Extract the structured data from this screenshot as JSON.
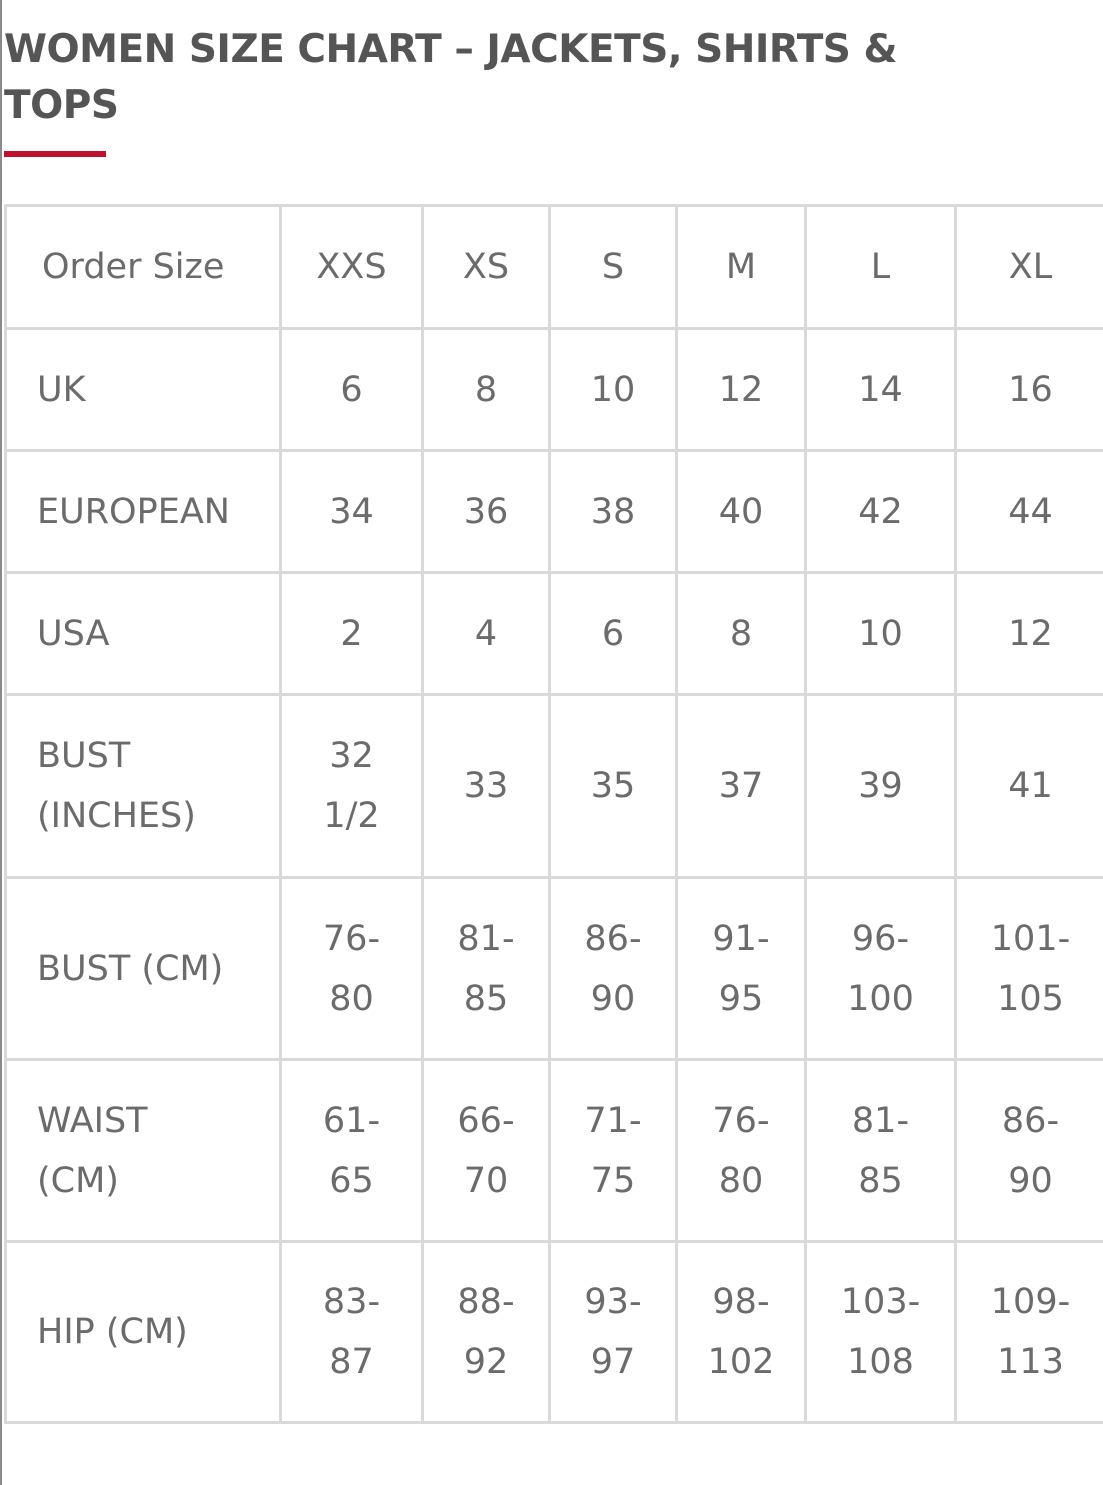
{
  "title": "WOMEN SIZE CHART – JACKETS, SHIRTS & TOPS",
  "accent_color": "#c0122e",
  "table": {
    "header": [
      "Order Size",
      "XXS",
      "XS",
      "S",
      "M",
      "L",
      "XL"
    ],
    "rows": [
      {
        "label": "UK",
        "values": [
          "6",
          "8",
          "10",
          "12",
          "14",
          "16"
        ]
      },
      {
        "label": "EUROPEAN",
        "values": [
          "34",
          "36",
          "38",
          "40",
          "42",
          "44"
        ]
      },
      {
        "label": "USA",
        "values": [
          "2",
          "4",
          "6",
          "8",
          "10",
          "12"
        ]
      },
      {
        "label": "BUST\n(INCHES)",
        "values": [
          "32\n1/2",
          "33",
          "35",
          "37",
          "39",
          "41"
        ]
      },
      {
        "label": "BUST (CM)",
        "values": [
          "76-\n80",
          "81-\n85",
          "86-\n90",
          "91-\n95",
          "96-\n100",
          "101-\n105"
        ]
      },
      {
        "label": "WAIST\n(CM)",
        "values": [
          "61-\n65",
          "66-\n70",
          "71-\n75",
          "76-\n80",
          "81-\n85",
          "86-\n90"
        ]
      },
      {
        "label": "HIP (CM)",
        "values": [
          "83-\n87",
          "88-\n92",
          "93-\n97",
          "98-\n102",
          "103-\n108",
          "109-\n113"
        ]
      }
    ]
  }
}
